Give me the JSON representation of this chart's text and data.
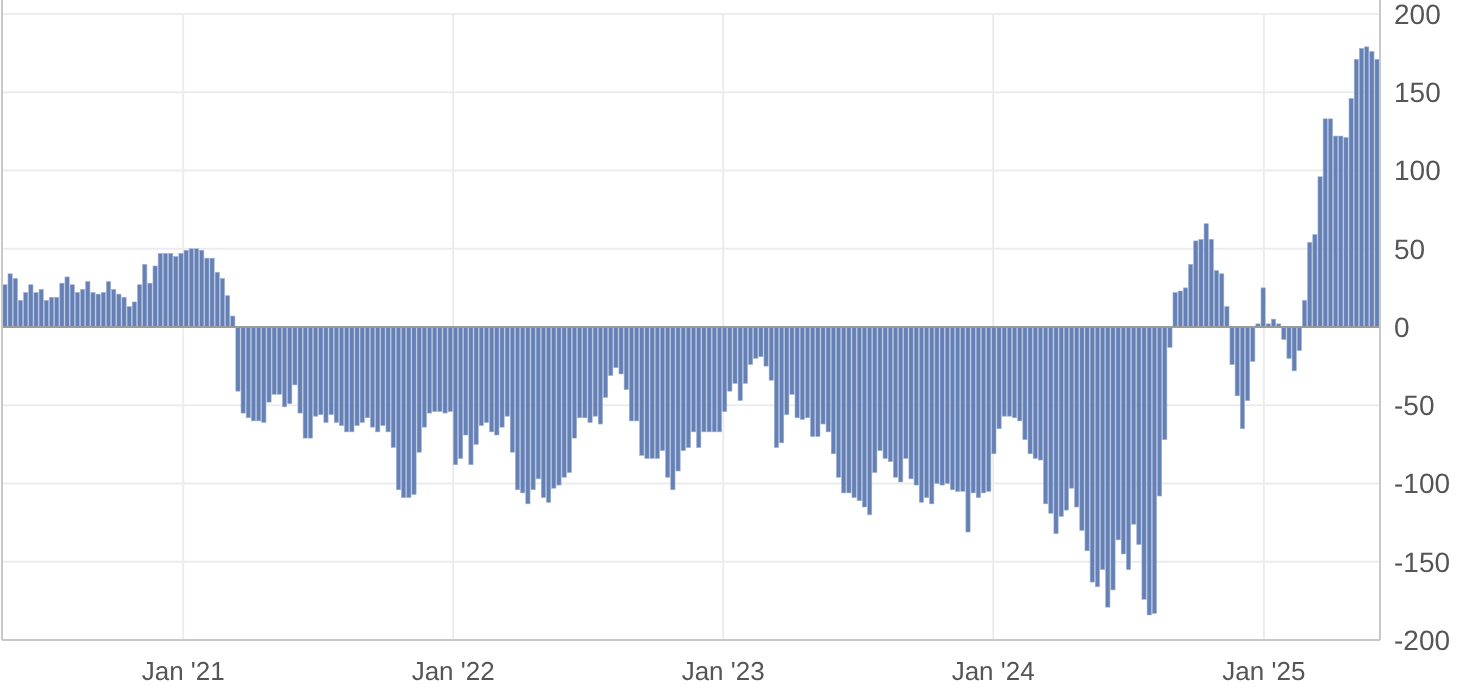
{
  "chart_data": {
    "type": "bar",
    "color": "#6580b5",
    "grid": true,
    "xlim": [
      "2020-05-01",
      "2025-06-07"
    ],
    "xticks": [
      {
        "value": "2021-01-01",
        "label": "Jan '21"
      },
      {
        "value": "2022-01-01",
        "label": "Jan '22"
      },
      {
        "value": "2023-01-01",
        "label": "Jan '23"
      },
      {
        "value": "2024-01-01",
        "label": "Jan '24"
      },
      {
        "value": "2025-01-01",
        "label": "Jan '25"
      }
    ],
    "ylim": [
      -200,
      200
    ],
    "yticks": [
      -200,
      -150,
      -100,
      -50,
      0,
      50,
      100,
      150,
      200
    ],
    "x": [
      "2020-05-05",
      "2020-05-12",
      "2020-05-19",
      "2020-05-26",
      "2020-06-02",
      "2020-06-09",
      "2020-06-16",
      "2020-06-23",
      "2020-06-30",
      "2020-07-07",
      "2020-07-14",
      "2020-07-21",
      "2020-07-28",
      "2020-08-04",
      "2020-08-11",
      "2020-08-18",
      "2020-08-25",
      "2020-09-01",
      "2020-09-08",
      "2020-09-15",
      "2020-09-22",
      "2020-09-29",
      "2020-10-06",
      "2020-10-13",
      "2020-10-20",
      "2020-10-27",
      "2020-11-03",
      "2020-11-10",
      "2020-11-17",
      "2020-11-24",
      "2020-12-01",
      "2020-12-08",
      "2020-12-15",
      "2020-12-22",
      "2020-12-29",
      "2021-01-05",
      "2021-01-12",
      "2021-01-19",
      "2021-01-26",
      "2021-02-02",
      "2021-02-09",
      "2021-02-16",
      "2021-02-23",
      "2021-03-02",
      "2021-03-09",
      "2021-03-16",
      "2021-03-23",
      "2021-03-30",
      "2021-04-06",
      "2021-04-13",
      "2021-04-20",
      "2021-04-27",
      "2021-05-04",
      "2021-05-11",
      "2021-05-18",
      "2021-05-25",
      "2021-06-01",
      "2021-06-08",
      "2021-06-15",
      "2021-06-22",
      "2021-06-29",
      "2021-07-06",
      "2021-07-13",
      "2021-07-20",
      "2021-07-27",
      "2021-08-03",
      "2021-08-10",
      "2021-08-17",
      "2021-08-24",
      "2021-08-31",
      "2021-09-07",
      "2021-09-14",
      "2021-09-21",
      "2021-09-28",
      "2021-10-05",
      "2021-10-12",
      "2021-10-19",
      "2021-10-26",
      "2021-11-02",
      "2021-11-09",
      "2021-11-16",
      "2021-11-23",
      "2021-11-30",
      "2021-12-07",
      "2021-12-14",
      "2021-12-21",
      "2021-12-28",
      "2022-01-04",
      "2022-01-11",
      "2022-01-18",
      "2022-01-25",
      "2022-02-01",
      "2022-02-08",
      "2022-02-15",
      "2022-02-22",
      "2022-03-01",
      "2022-03-08",
      "2022-03-15",
      "2022-03-22",
      "2022-03-29",
      "2022-04-05",
      "2022-04-12",
      "2022-04-19",
      "2022-04-26",
      "2022-05-03",
      "2022-05-10",
      "2022-05-17",
      "2022-05-24",
      "2022-05-31",
      "2022-06-07",
      "2022-06-14",
      "2022-06-21",
      "2022-06-28",
      "2022-07-05",
      "2022-07-12",
      "2022-07-19",
      "2022-07-26",
      "2022-08-02",
      "2022-08-09",
      "2022-08-16",
      "2022-08-23",
      "2022-08-30",
      "2022-09-06",
      "2022-09-13",
      "2022-09-20",
      "2022-09-27",
      "2022-10-04",
      "2022-10-11",
      "2022-10-18",
      "2022-10-25",
      "2022-11-01",
      "2022-11-08",
      "2022-11-15",
      "2022-11-22",
      "2022-11-29",
      "2022-12-06",
      "2022-12-13",
      "2022-12-20",
      "2022-12-27",
      "2023-01-03",
      "2023-01-10",
      "2023-01-17",
      "2023-01-24",
      "2023-01-31",
      "2023-02-07",
      "2023-02-14",
      "2023-02-21",
      "2023-02-28",
      "2023-03-07",
      "2023-03-14",
      "2023-03-21",
      "2023-03-28",
      "2023-04-04",
      "2023-04-11",
      "2023-04-18",
      "2023-04-25",
      "2023-05-02",
      "2023-05-09",
      "2023-05-16",
      "2023-05-23",
      "2023-05-30",
      "2023-06-06",
      "2023-06-13",
      "2023-06-20",
      "2023-06-27",
      "2023-07-04",
      "2023-07-11",
      "2023-07-18",
      "2023-07-25",
      "2023-08-01",
      "2023-08-08",
      "2023-08-15",
      "2023-08-22",
      "2023-08-29",
      "2023-09-05",
      "2023-09-12",
      "2023-09-19",
      "2023-09-26",
      "2023-10-03",
      "2023-10-10",
      "2023-10-17",
      "2023-10-24",
      "2023-10-31",
      "2023-11-07",
      "2023-11-14",
      "2023-11-21",
      "2023-11-28",
      "2023-12-05",
      "2023-12-12",
      "2023-12-19",
      "2023-12-26",
      "2024-01-02",
      "2024-01-09",
      "2024-01-16",
      "2024-01-23",
      "2024-01-30",
      "2024-02-06",
      "2024-02-13",
      "2024-02-20",
      "2024-02-27",
      "2024-03-05",
      "2024-03-12",
      "2024-03-19",
      "2024-03-26",
      "2024-04-02",
      "2024-04-09",
      "2024-04-16",
      "2024-04-23",
      "2024-04-30",
      "2024-05-07",
      "2024-05-14",
      "2024-05-21",
      "2024-05-28",
      "2024-06-04",
      "2024-06-11",
      "2024-06-18",
      "2024-06-25",
      "2024-07-02",
      "2024-07-09",
      "2024-07-16",
      "2024-07-23",
      "2024-07-30",
      "2024-08-06",
      "2024-08-13",
      "2024-08-20",
      "2024-08-27",
      "2024-09-03",
      "2024-09-10",
      "2024-09-17",
      "2024-09-24",
      "2024-10-01",
      "2024-10-08",
      "2024-10-15",
      "2024-10-22",
      "2024-10-29",
      "2024-11-05",
      "2024-11-12",
      "2024-11-19",
      "2024-11-26",
      "2024-12-03",
      "2024-12-10",
      "2024-12-17",
      "2024-12-24",
      "2024-12-31",
      "2025-01-07",
      "2025-01-14",
      "2025-01-21",
      "2025-01-28",
      "2025-02-04",
      "2025-02-11",
      "2025-02-18",
      "2025-02-25",
      "2025-03-04",
      "2025-03-11",
      "2025-03-18",
      "2025-03-25",
      "2025-04-01",
      "2025-04-08",
      "2025-04-15",
      "2025-04-22",
      "2025-04-29",
      "2025-05-06",
      "2025-05-13",
      "2025-05-20",
      "2025-05-27",
      "2025-06-03"
    ],
    "values": [
      27,
      34,
      31,
      17,
      22,
      27,
      22,
      24,
      17,
      19,
      19,
      28,
      32,
      27,
      22,
      24,
      29,
      22,
      21,
      22,
      29,
      24,
      21,
      19,
      13,
      16,
      27,
      40,
      28,
      39,
      47,
      47,
      47,
      45,
      47,
      49,
      50,
      50,
      49,
      44,
      44,
      35,
      31,
      20,
      7,
      -41,
      -55,
      -58,
      -60,
      -60,
      -61,
      -48,
      -43,
      -43,
      -51,
      -49,
      -37,
      -55,
      -71,
      -71,
      -57,
      -56,
      -61,
      -56,
      -61,
      -63,
      -67,
      -67,
      -63,
      -61,
      -58,
      -64,
      -67,
      -63,
      -67,
      -77,
      -104,
      -109,
      -109,
      -107,
      -80,
      -64,
      -55,
      -54,
      -54,
      -55,
      -54,
      -88,
      -84,
      -69,
      -88,
      -75,
      -63,
      -61,
      -67,
      -69,
      -64,
      -57,
      -80,
      -104,
      -106,
      -113,
      -104,
      -97,
      -109,
      -112,
      -103,
      -101,
      -96,
      -93,
      -71,
      -58,
      -58,
      -61,
      -57,
      -62,
      -45,
      -31,
      -26,
      -30,
      -40,
      -60,
      -60,
      -82,
      -84,
      -84,
      -84,
      -79,
      -96,
      -104,
      -92,
      -79,
      -77,
      -67,
      -77,
      -67,
      -67,
      -67,
      -67,
      -54,
      -41,
      -36,
      -47,
      -36,
      -24,
      -20,
      -19,
      -25,
      -34,
      -77,
      -74,
      -56,
      -43,
      -58,
      -59,
      -58,
      -70,
      -70,
      -62,
      -67,
      -81,
      -96,
      -106,
      -106,
      -109,
      -111,
      -115,
      -120,
      -93,
      -79,
      -84,
      -86,
      -96,
      -99,
      -84,
      -97,
      -101,
      -112,
      -109,
      -113,
      -100,
      -101,
      -100,
      -104,
      -105,
      -105,
      -131,
      -106,
      -109,
      -106,
      -105,
      -81,
      -65,
      -57,
      -57,
      -58,
      -60,
      -72,
      -81,
      -84,
      -85,
      -113,
      -119,
      -132,
      -121,
      -117,
      -103,
      -115,
      -130,
      -143,
      -163,
      -166,
      -155,
      -179,
      -168,
      -136,
      -145,
      -155,
      -126,
      -139,
      -174,
      -184,
      -183,
      -108,
      -72,
      -13,
      22,
      23,
      25,
      40,
      55,
      56,
      66,
      56,
      36,
      34,
      13,
      -24,
      -44,
      -65,
      -47,
      -22,
      2,
      25,
      2,
      5,
      2,
      -8,
      -20,
      -28,
      -15,
      17,
      54,
      59,
      96,
      133,
      133,
      122,
      122,
      121,
      146,
      171,
      178,
      179,
      176,
      171
    ]
  }
}
